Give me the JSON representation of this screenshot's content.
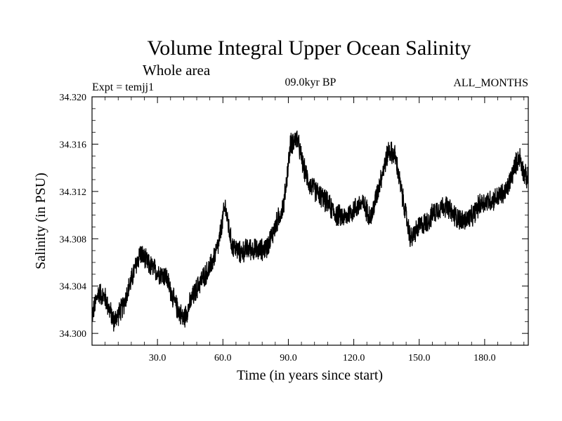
{
  "chart_data": {
    "type": "line",
    "title": "Volume Integral Upper Ocean Salinity",
    "subtitle": "Whole area",
    "expt_label": "Expt = temjj1",
    "period_label": "09.0kyr BP",
    "months_label": "ALL_MONTHS",
    "xlabel": "Time (in years since start)",
    "ylabel": "Salinity (in PSU)",
    "xlim": [
      0,
      200
    ],
    "ylim": [
      34.299,
      34.32
    ],
    "xticks": [
      "30.0",
      "60.0",
      "90.0",
      "120.0",
      "150.0",
      "180.0"
    ],
    "xtick_values": [
      30,
      60,
      90,
      120,
      150,
      180
    ],
    "yticks": [
      "34.300",
      "34.304",
      "34.308",
      "34.312",
      "34.316",
      "34.320"
    ],
    "ytick_values": [
      34.3,
      34.304,
      34.308,
      34.312,
      34.316,
      34.32
    ],
    "noise_amplitude": 0.0011,
    "series": [
      {
        "name": "Salinity",
        "x": [
          0,
          3,
          6,
          10,
          14,
          18,
          22,
          26,
          30,
          34,
          38,
          42,
          46,
          50,
          54,
          58,
          61,
          64,
          68,
          72,
          76,
          80,
          84,
          88,
          91,
          94,
          97,
          100,
          104,
          108,
          112,
          116,
          120,
          124,
          128,
          132,
          136,
          139,
          142,
          146,
          150,
          154,
          158,
          162,
          166,
          170,
          174,
          178,
          182,
          186,
          190,
          194,
          196,
          198,
          200
        ],
        "values": [
          34.3015,
          34.3035,
          34.303,
          34.301,
          34.3022,
          34.3045,
          34.3068,
          34.3058,
          34.3052,
          34.3048,
          34.3025,
          34.3012,
          34.303,
          34.3045,
          34.3055,
          34.3075,
          34.3108,
          34.3075,
          34.3068,
          34.3072,
          34.307,
          34.3072,
          34.309,
          34.311,
          34.316,
          34.3165,
          34.314,
          34.3125,
          34.3118,
          34.311,
          34.31,
          34.3098,
          34.3105,
          34.311,
          34.3098,
          34.3128,
          34.3155,
          34.315,
          34.3118,
          34.308,
          34.309,
          34.3095,
          34.3105,
          34.3108,
          34.31,
          34.3095,
          34.3098,
          34.311,
          34.3112,
          34.3115,
          34.312,
          34.3142,
          34.315,
          34.3135,
          34.313
        ]
      }
    ]
  }
}
